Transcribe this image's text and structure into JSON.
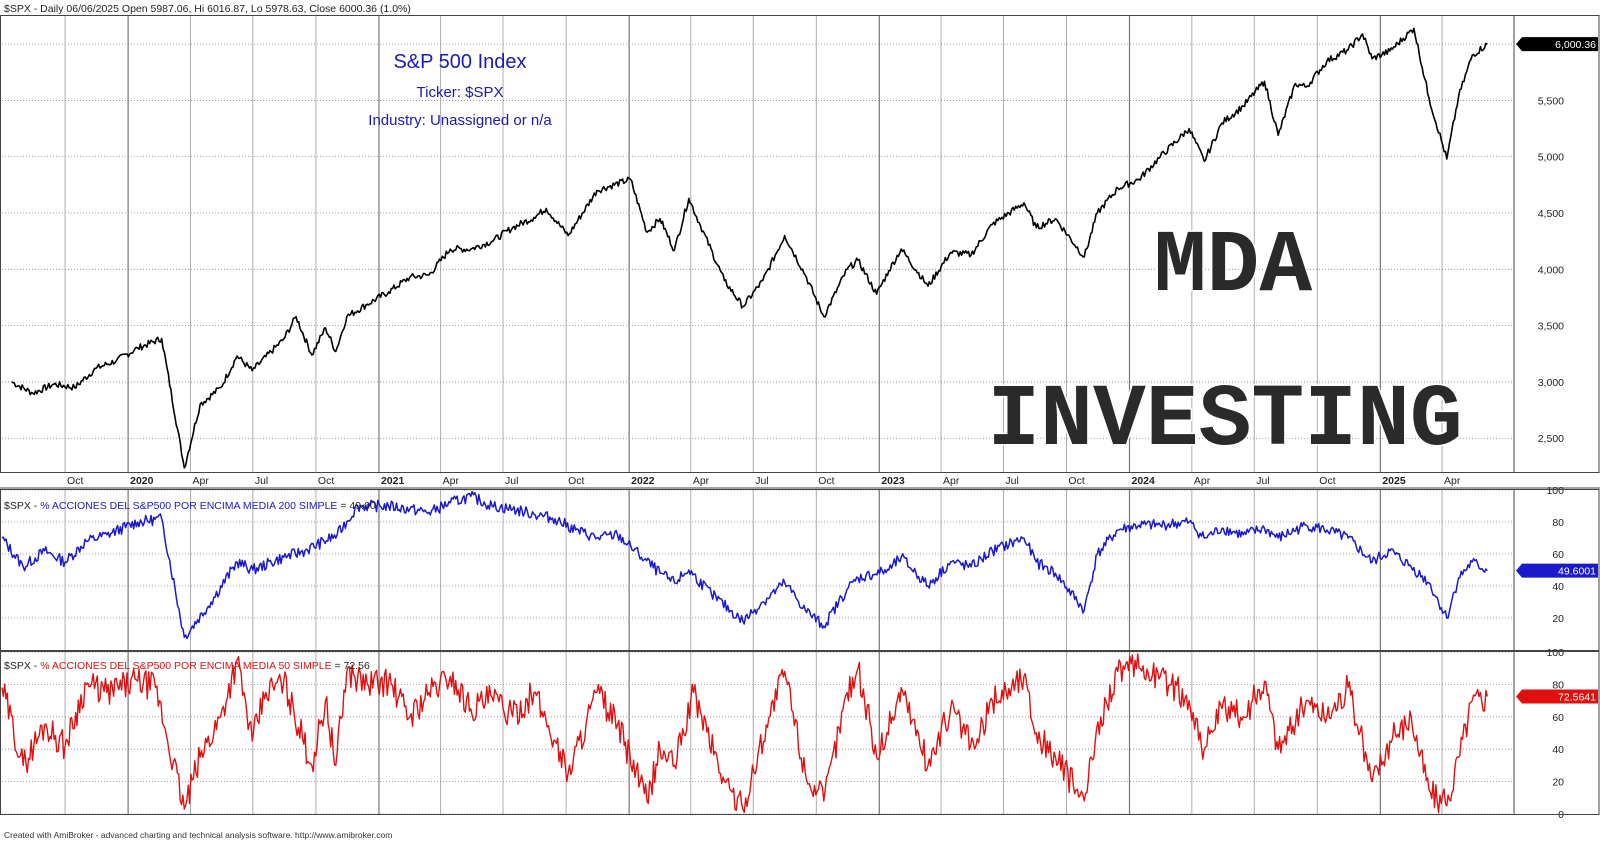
{
  "watermark": {
    "line1": "MDA",
    "line2": "INVESTING"
  },
  "footer": "Created with AmiBroker - advanced charting and technical analysis software. http://www.amibroker.com",
  "chart_data": [
    {
      "type": "line",
      "header": "$SPX - Daily 06/06/2025 Open 5987.06, Hi 6016.87, Lo 5978.63, Close 6000.36 (1.0%)",
      "title": "S&P 500 Index",
      "annotations": [
        "Ticker: $SPX",
        "Industry:  Unassigned or n/a"
      ],
      "last_value_label": "6,000.36",
      "color": "#000000",
      "ylim": [
        2200,
        6250
      ],
      "yticks": [
        2500,
        3000,
        3500,
        4000,
        4500,
        5000,
        5500,
        6000
      ],
      "ytick_labels": [
        "2,500",
        "3,000",
        "3,500",
        "4,000",
        "4,500",
        "5,000",
        "5,500",
        "6,000"
      ],
      "x": [
        "2019-07-15",
        "2019-08-15",
        "2019-09-15",
        "2019-10-15",
        "2019-11-15",
        "2019-12-15",
        "2020-01-15",
        "2020-02-19",
        "2020-03-23",
        "2020-04-15",
        "2020-05-15",
        "2020-06-08",
        "2020-06-30",
        "2020-08-15",
        "2020-09-02",
        "2020-09-25",
        "2020-10-15",
        "2020-10-30",
        "2020-11-15",
        "2020-12-15",
        "2021-01-15",
        "2021-02-15",
        "2021-03-15",
        "2021-04-15",
        "2021-05-15",
        "2021-06-15",
        "2021-07-15",
        "2021-08-15",
        "2021-09-02",
        "2021-10-04",
        "2021-11-15",
        "2022-01-03",
        "2022-01-27",
        "2022-02-15",
        "2022-03-08",
        "2022-03-29",
        "2022-04-15",
        "2022-05-20",
        "2022-06-16",
        "2022-07-15",
        "2022-08-16",
        "2022-09-15",
        "2022-10-12",
        "2022-11-15",
        "2022-12-01",
        "2022-12-28",
        "2023-01-15",
        "2023-02-02",
        "2023-03-13",
        "2023-04-15",
        "2023-05-15",
        "2023-06-15",
        "2023-07-31",
        "2023-08-18",
        "2023-09-15",
        "2023-10-27",
        "2023-11-15",
        "2023-12-15",
        "2024-01-15",
        "2024-02-15",
        "2024-03-28",
        "2024-04-19",
        "2024-05-15",
        "2024-06-15",
        "2024-07-16",
        "2024-08-05",
        "2024-08-30",
        "2024-09-15",
        "2024-10-15",
        "2024-11-15",
        "2024-12-06",
        "2024-12-20",
        "2025-01-15",
        "2025-02-19",
        "2025-03-13",
        "2025-04-08",
        "2025-04-25",
        "2025-05-15",
        "2025-06-06"
      ],
      "y": [
        3000,
        2900,
        2980,
        2950,
        3120,
        3190,
        3300,
        3386,
        2237,
        2800,
        2950,
        3230,
        3100,
        3380,
        3580,
        3240,
        3480,
        3270,
        3580,
        3690,
        3800,
        3930,
        3950,
        4180,
        4180,
        4250,
        4370,
        4460,
        4540,
        4300,
        4700,
        4800,
        4330,
        4450,
        4170,
        4630,
        4390,
        3900,
        3670,
        3900,
        4300,
        3950,
        3580,
        4000,
        4080,
        3780,
        3990,
        4180,
        3850,
        4150,
        4130,
        4400,
        4590,
        4370,
        4450,
        4110,
        4500,
        4720,
        4800,
        5000,
        5250,
        4960,
        5300,
        5450,
        5670,
        5190,
        5650,
        5620,
        5850,
        5950,
        6090,
        5870,
        5940,
        6140,
        5520,
        4980,
        5530,
        5900,
        6000
      ]
    },
    {
      "type": "line",
      "label_prefix": "$SPX - ",
      "label_name": "% ACCIONES DEL S&P500 POR ENCIMA MEDIA 200 SIMPLE",
      "label_value": " = 49.60",
      "last_value_label": "49.6001",
      "color": "#1a1acc",
      "ylim": [
        0,
        100
      ],
      "yticks": [
        20,
        40,
        60,
        80,
        100
      ],
      "x": [
        "2019-07-01",
        "2019-08-01",
        "2019-09-01",
        "2019-10-01",
        "2019-11-01",
        "2019-12-01",
        "2020-01-15",
        "2020-02-19",
        "2020-03-23",
        "2020-05-01",
        "2020-06-08",
        "2020-07-01",
        "2020-08-15",
        "2020-09-15",
        "2020-11-01",
        "2020-12-01",
        "2021-01-15",
        "2021-02-15",
        "2021-03-15",
        "2021-04-15",
        "2021-05-15",
        "2021-06-15",
        "2021-07-15",
        "2021-08-15",
        "2021-09-15",
        "2021-10-15",
        "2021-11-15",
        "2021-12-15",
        "2022-01-15",
        "2022-02-15",
        "2022-03-08",
        "2022-03-29",
        "2022-05-01",
        "2022-06-16",
        "2022-07-15",
        "2022-08-16",
        "2022-09-15",
        "2022-10-12",
        "2022-11-15",
        "2022-12-01",
        "2023-01-15",
        "2023-02-02",
        "2023-03-13",
        "2023-04-15",
        "2023-05-15",
        "2023-06-15",
        "2023-07-31",
        "2023-08-18",
        "2023-09-15",
        "2023-10-27",
        "2023-11-15",
        "2023-12-15",
        "2024-01-15",
        "2024-02-15",
        "2024-03-28",
        "2024-04-19",
        "2024-05-15",
        "2024-06-15",
        "2024-07-16",
        "2024-08-05",
        "2024-09-15",
        "2024-10-15",
        "2024-11-15",
        "2024-12-20",
        "2025-01-15",
        "2025-02-15",
        "2025-03-13",
        "2025-04-08",
        "2025-04-25",
        "2025-05-15",
        "2025-06-06"
      ],
      "y": [
        70,
        52,
        62,
        55,
        68,
        72,
        80,
        82,
        8,
        30,
        55,
        50,
        58,
        62,
        72,
        90,
        90,
        88,
        86,
        92,
        96,
        90,
        88,
        85,
        82,
        75,
        70,
        72,
        60,
        48,
        42,
        50,
        35,
        18,
        30,
        42,
        25,
        15,
        38,
        45,
        50,
        58,
        40,
        55,
        52,
        62,
        70,
        55,
        48,
        25,
        60,
        75,
        78,
        78,
        80,
        70,
        76,
        72,
        76,
        70,
        78,
        75,
        70,
        55,
        62,
        52,
        42,
        20,
        45,
        55,
        49.6
      ]
    },
    {
      "type": "line",
      "label_prefix": "$SPX - ",
      "label_name": "% ACCIONES DEL S&P500 POR ENCIMA MEDIA 50 SIMPLE",
      "label_value": " = 72.56",
      "last_value_label": "72.5641",
      "color": "#e01010",
      "ylim": [
        0,
        100
      ],
      "yticks": [
        0,
        20,
        40,
        60,
        80,
        100
      ],
      "x": [
        "2019-07-01",
        "2019-08-01",
        "2019-09-01",
        "2019-10-01",
        "2019-11-01",
        "2019-12-01",
        "2020-01-15",
        "2020-02-10",
        "2020-03-23",
        "2020-04-15",
        "2020-05-15",
        "2020-06-08",
        "2020-06-30",
        "2020-07-20",
        "2020-08-15",
        "2020-09-25",
        "2020-10-15",
        "2020-10-30",
        "2020-11-15",
        "2020-12-15",
        "2021-01-15",
        "2021-02-15",
        "2021-03-15",
        "2021-04-15",
        "2021-05-15",
        "2021-06-15",
        "2021-07-15",
        "2021-08-15",
        "2021-09-15",
        "2021-10-04",
        "2021-11-15",
        "2021-12-15",
        "2022-01-27",
        "2022-02-15",
        "2022-03-08",
        "2022-04-05",
        "2022-05-20",
        "2022-06-16",
        "2022-07-20",
        "2022-08-16",
        "2022-09-15",
        "2022-10-12",
        "2022-11-15",
        "2022-12-01",
        "2022-12-28",
        "2023-01-20",
        "2023-02-02",
        "2023-03-13",
        "2023-04-15",
        "2023-05-20",
        "2023-06-15",
        "2023-07-31",
        "2023-08-18",
        "2023-09-15",
        "2023-10-27",
        "2023-11-20",
        "2023-12-15",
        "2024-01-15",
        "2024-02-15",
        "2024-03-28",
        "2024-04-19",
        "2024-05-15",
        "2024-06-15",
        "2024-07-16",
        "2024-08-05",
        "2024-09-15",
        "2024-10-15",
        "2024-11-15",
        "2024-12-20",
        "2025-01-15",
        "2025-02-15",
        "2025-03-13",
        "2025-04-08",
        "2025-04-25",
        "2025-05-15",
        "2025-06-06"
      ],
      "y": [
        78,
        30,
        55,
        42,
        80,
        75,
        82,
        78,
        3,
        35,
        60,
        95,
        45,
        75,
        82,
        30,
        70,
        30,
        88,
        80,
        82,
        60,
        75,
        85,
        65,
        72,
        60,
        75,
        45,
        25,
        75,
        55,
        8,
        40,
        30,
        75,
        20,
        3,
        55,
        88,
        25,
        8,
        75,
        90,
        35,
        60,
        78,
        30,
        65,
        40,
        70,
        85,
        50,
        35,
        8,
        60,
        88,
        90,
        85,
        70,
        40,
        65,
        60,
        82,
        40,
        70,
        60,
        78,
        20,
        45,
        60,
        15,
        5,
        35,
        70,
        72.56
      ]
    }
  ],
  "xaxis": {
    "ticks": [
      {
        "label": "Oct",
        "date": "2019-10-01",
        "year": false
      },
      {
        "label": "2020",
        "date": "2020-01-01",
        "year": true
      },
      {
        "label": "Apr",
        "date": "2020-04-01",
        "year": false
      },
      {
        "label": "Jul",
        "date": "2020-07-01",
        "year": false
      },
      {
        "label": "Oct",
        "date": "2020-10-01",
        "year": false
      },
      {
        "label": "2021",
        "date": "2021-01-01",
        "year": true
      },
      {
        "label": "Apr",
        "date": "2021-04-01",
        "year": false
      },
      {
        "label": "Jul",
        "date": "2021-07-01",
        "year": false
      },
      {
        "label": "Oct",
        "date": "2021-10-01",
        "year": false
      },
      {
        "label": "2022",
        "date": "2022-01-01",
        "year": true
      },
      {
        "label": "Apr",
        "date": "2022-04-01",
        "year": false
      },
      {
        "label": "Jul",
        "date": "2022-07-01",
        "year": false
      },
      {
        "label": "Oct",
        "date": "2022-10-01",
        "year": false
      },
      {
        "label": "2023",
        "date": "2023-01-01",
        "year": true
      },
      {
        "label": "Apr",
        "date": "2023-04-01",
        "year": false
      },
      {
        "label": "Jul",
        "date": "2023-07-01",
        "year": false
      },
      {
        "label": "Oct",
        "date": "2023-10-01",
        "year": false
      },
      {
        "label": "2024",
        "date": "2024-01-01",
        "year": true
      },
      {
        "label": "Apr",
        "date": "2024-04-01",
        "year": false
      },
      {
        "label": "Jul",
        "date": "2024-07-01",
        "year": false
      },
      {
        "label": "Oct",
        "date": "2024-10-01",
        "year": false
      },
      {
        "label": "2025",
        "date": "2025-01-01",
        "year": true
      },
      {
        "label": "Apr",
        "date": "2025-04-01",
        "year": false
      }
    ],
    "start": "2019-07-01",
    "end": "2025-07-15"
  }
}
